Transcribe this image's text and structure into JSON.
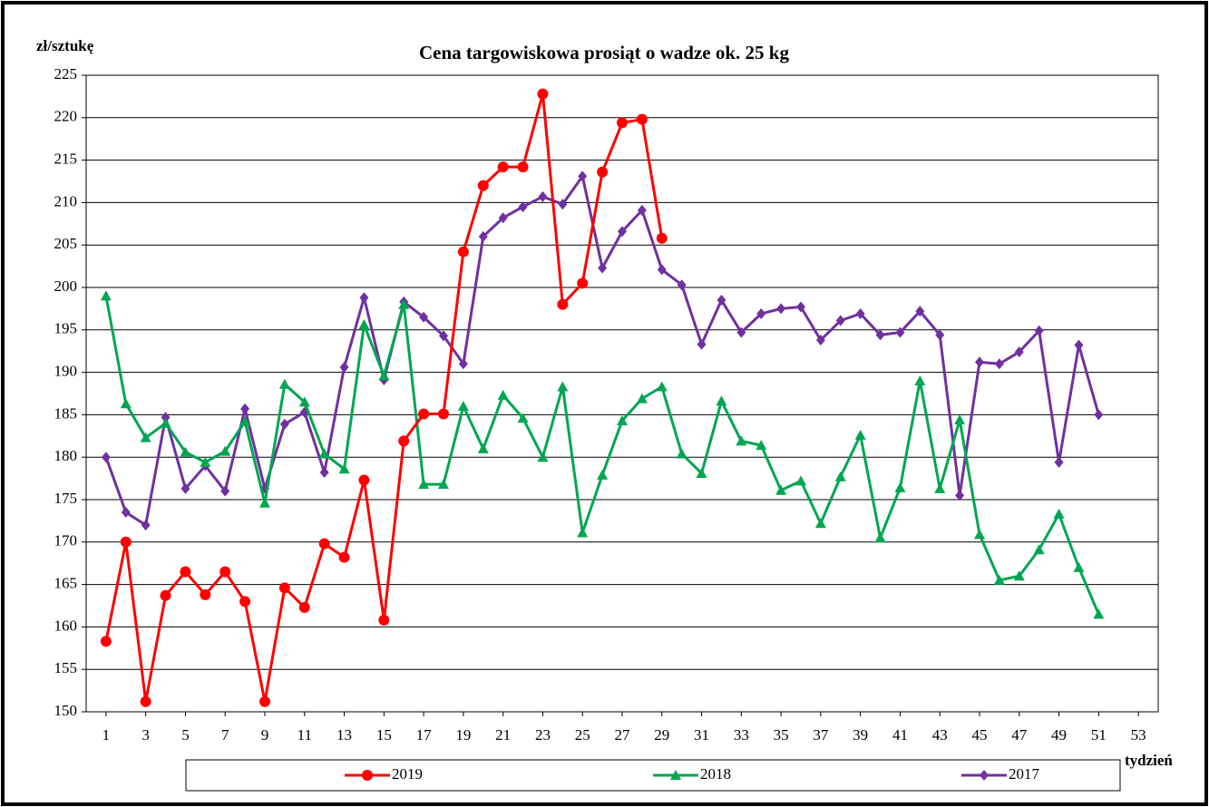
{
  "chart_data": {
    "type": "line",
    "title": "Cena targowiskowa prosiąt o wadze ok. 25 kg",
    "y_label": "zł/sztukę",
    "x_label": "tydzień",
    "x": [
      1,
      2,
      3,
      4,
      5,
      6,
      7,
      8,
      9,
      10,
      11,
      12,
      13,
      14,
      15,
      16,
      17,
      18,
      19,
      20,
      21,
      22,
      23,
      24,
      25,
      26,
      27,
      28,
      29,
      30,
      31,
      32,
      33,
      34,
      35,
      36,
      37,
      38,
      39,
      40,
      41,
      42,
      43,
      44,
      45,
      46,
      47,
      48,
      49,
      50,
      51
    ],
    "xlim": [
      0,
      54
    ],
    "xticks": [
      1,
      3,
      5,
      7,
      9,
      11,
      13,
      15,
      17,
      19,
      21,
      23,
      25,
      27,
      29,
      31,
      33,
      35,
      37,
      39,
      41,
      43,
      45,
      47,
      49,
      51,
      53
    ],
    "ylim": [
      150,
      225
    ],
    "yticks": [
      150,
      155,
      160,
      165,
      170,
      175,
      180,
      185,
      190,
      195,
      200,
      205,
      210,
      215,
      220,
      225
    ],
    "grid": true,
    "legend": "bottom",
    "series": [
      {
        "name": "2019",
        "color": "#ff0000",
        "marker": "circle",
        "values": [
          158.3,
          170,
          151.2,
          163.7,
          166.5,
          163.8,
          166.5,
          163,
          151.2,
          164.6,
          162.3,
          169.8,
          168.2,
          177.3,
          160.8,
          181.9,
          185.1,
          185.1,
          204.2,
          212,
          214.2,
          214.2,
          222.8,
          198,
          200.5,
          213.6,
          219.4,
          219.8,
          205.8,
          null,
          null,
          null,
          null,
          null,
          null,
          null,
          null,
          null,
          null,
          null,
          null,
          null,
          null,
          null,
          null,
          null,
          null,
          null,
          null,
          null,
          null
        ]
      },
      {
        "name": "2018",
        "color": "#00a651",
        "marker": "triangle",
        "values": [
          199,
          186.3,
          182.3,
          184,
          180.6,
          179.4,
          180.7,
          184.2,
          174.6,
          188.6,
          186.5,
          180.4,
          178.6,
          195.6,
          189.6,
          198,
          176.8,
          176.8,
          186,
          181,
          187.3,
          184.6,
          180,
          188.3,
          171.1,
          177.9,
          184.3,
          186.9,
          188.3,
          180.4,
          178.1,
          186.6,
          181.9,
          181.4,
          176.1,
          177.2,
          172.2,
          177.7,
          182.6,
          170.5,
          176.4,
          189,
          176.3,
          184.4,
          170.9,
          165.5,
          166,
          169.1,
          173.3,
          167,
          161.5
        ]
      },
      {
        "name": "2017",
        "color": "#7030a0",
        "marker": "diamond",
        "values": [
          180,
          173.5,
          172,
          184.7,
          176.3,
          179,
          176,
          185.7,
          176.3,
          183.9,
          185.3,
          178.2,
          190.6,
          198.8,
          189.1,
          198.3,
          196.5,
          194.3,
          191,
          206,
          208.2,
          209.5,
          210.7,
          209.8,
          213.1,
          202.3,
          206.6,
          209.1,
          202.1,
          200.3,
          193.3,
          198.5,
          194.7,
          196.9,
          197.5,
          197.7,
          193.8,
          196.1,
          196.9,
          194.4,
          194.7,
          197.2,
          194.4,
          175.5,
          191.2,
          191,
          192.4,
          194.9,
          179.4,
          193.2,
          185
        ]
      }
    ]
  }
}
